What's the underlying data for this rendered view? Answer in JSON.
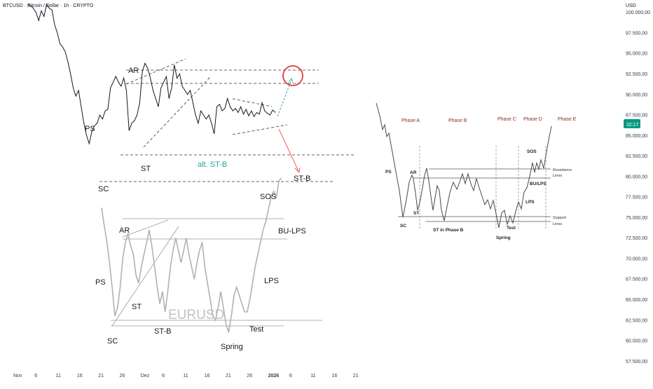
{
  "header": {
    "symbol_title": "BTCUSD · Bitcoin / Dollar · 1h · CRYPTO",
    "currency": "USD",
    "price_badge": "32:17"
  },
  "chart_data": {
    "type": "line",
    "title": "BTCUSD · Bitcoin / Dollar · 1h · CRYPTO",
    "y_axis": {
      "ticks": [
        "100.000,00",
        "97.500,00",
        "95.000,00",
        "92.500,00",
        "90.000,00",
        "87.500,00",
        "85.000,00",
        "82.500,00",
        "80.000,00",
        "77.500,00",
        "75.000,00",
        "72.500,00",
        "70.000,00",
        "67.500,00",
        "65.000,00",
        "62.500,00",
        "60.000,00",
        "57.500,00"
      ],
      "ylim": [
        56500,
        101000
      ]
    },
    "x_axis": {
      "ticks": [
        "Nov",
        "6",
        "11",
        "16",
        "21",
        "26",
        "Dez",
        "6",
        "11",
        "16",
        "21",
        "26",
        "2026",
        "6",
        "11",
        "16",
        "21"
      ],
      "bold": "2026"
    },
    "series": [
      {
        "points": [
          [
            0,
            101000
          ],
          [
            1,
            100800
          ],
          [
            2,
            100500
          ],
          [
            3,
            100000
          ],
          [
            4,
            99000
          ],
          [
            5,
            100200
          ],
          [
            6,
            99500
          ],
          [
            7,
            101000
          ],
          [
            8,
            100500
          ],
          [
            9,
            100300
          ],
          [
            10,
            98500
          ],
          [
            11,
            97500
          ],
          [
            12,
            96200
          ],
          [
            13,
            95800
          ],
          [
            14,
            95200
          ],
          [
            15,
            94000
          ],
          [
            16,
            92500
          ],
          [
            17,
            90800
          ],
          [
            18,
            89800
          ],
          [
            19,
            90500
          ],
          [
            20,
            88500
          ],
          [
            21,
            86500
          ],
          [
            22,
            85000
          ],
          [
            23,
            84000
          ],
          [
            24,
            85500
          ],
          [
            25,
            86200
          ],
          [
            26,
            86500
          ],
          [
            27,
            87500
          ],
          [
            28,
            87000
          ],
          [
            29,
            88000
          ],
          [
            30,
            88200
          ],
          [
            31,
            90800
          ],
          [
            32,
            91500
          ],
          [
            33,
            92200
          ],
          [
            34,
            91500
          ],
          [
            35,
            91000
          ],
          [
            36,
            92000
          ],
          [
            37,
            90500
          ],
          [
            38,
            85600
          ],
          [
            39,
            86500
          ],
          [
            40,
            86800
          ],
          [
            41,
            87500
          ],
          [
            42,
            89000
          ],
          [
            43,
            92800
          ],
          [
            44,
            93800
          ],
          [
            45,
            93200
          ],
          [
            46,
            92000
          ],
          [
            47,
            90500
          ],
          [
            48,
            89500
          ],
          [
            49,
            88500
          ],
          [
            50,
            90800
          ],
          [
            51,
            91500
          ],
          [
            52,
            92200
          ],
          [
            53,
            89500
          ],
          [
            54,
            90800
          ],
          [
            55,
            93600
          ],
          [
            56,
            92000
          ],
          [
            57,
            92500
          ],
          [
            58,
            91000
          ],
          [
            59,
            90500
          ],
          [
            60,
            90000
          ],
          [
            61,
            90500
          ],
          [
            62,
            89000
          ],
          [
            63,
            87500
          ],
          [
            64,
            86500
          ],
          [
            65,
            88000
          ],
          [
            66,
            87500
          ],
          [
            67,
            87000
          ],
          [
            68,
            87500
          ],
          [
            69,
            86500
          ],
          [
            70,
            85200
          ],
          [
            71,
            88500
          ],
          [
            72,
            88800
          ],
          [
            73,
            88000
          ],
          [
            74,
            88300
          ],
          [
            75,
            89500
          ],
          [
            76,
            88500
          ],
          [
            77,
            88000
          ],
          [
            78,
            88300
          ],
          [
            79,
            87800
          ],
          [
            80,
            88500
          ],
          [
            81,
            87600
          ],
          [
            82,
            88200
          ],
          [
            83,
            87400
          ],
          [
            84,
            88000
          ],
          [
            85,
            87300
          ],
          [
            86,
            87800
          ],
          [
            87,
            87600
          ],
          [
            88,
            89000
          ],
          [
            89,
            88000
          ],
          [
            90,
            87700
          ],
          [
            91,
            87500
          ],
          [
            92,
            88100
          ],
          [
            93,
            87800
          ]
        ]
      },
      {
        "name": "EURUSD",
        "points": [
          [
            0,
            76200
          ],
          [
            2,
            74000
          ],
          [
            4,
            72000
          ],
          [
            6,
            69500
          ],
          [
            8,
            66500
          ],
          [
            10,
            63000
          ],
          [
            12,
            64000
          ],
          [
            14,
            66500
          ],
          [
            16,
            70000
          ],
          [
            18,
            72000
          ],
          [
            20,
            73000
          ],
          [
            22,
            71500
          ],
          [
            24,
            70500
          ],
          [
            26,
            68000
          ],
          [
            28,
            67000
          ],
          [
            30,
            69000
          ],
          [
            32,
            70500
          ],
          [
            34,
            72000
          ],
          [
            36,
            73500
          ],
          [
            38,
            71500
          ],
          [
            40,
            69000
          ],
          [
            42,
            66500
          ],
          [
            44,
            64500
          ],
          [
            46,
            66000
          ],
          [
            48,
            63500
          ],
          [
            50,
            66000
          ],
          [
            52,
            69000
          ],
          [
            54,
            71000
          ],
          [
            56,
            72500
          ],
          [
            58,
            71000
          ],
          [
            60,
            69500
          ],
          [
            62,
            71000
          ],
          [
            64,
            72500
          ],
          [
            66,
            70500
          ],
          [
            68,
            69000
          ],
          [
            70,
            67500
          ],
          [
            72,
            69500
          ],
          [
            74,
            71000
          ],
          [
            76,
            72000
          ],
          [
            78,
            69000
          ],
          [
            80,
            67000
          ],
          [
            82,
            65000
          ],
          [
            84,
            63000
          ],
          [
            86,
            62500
          ],
          [
            88,
            64000
          ],
          [
            90,
            66000
          ],
          [
            92,
            64000
          ],
          [
            94,
            62000
          ],
          [
            96,
            61000
          ],
          [
            98,
            63000
          ],
          [
            100,
            65500
          ],
          [
            102,
            66500
          ],
          [
            104,
            65500
          ],
          [
            106,
            64500
          ],
          [
            108,
            63500
          ],
          [
            110,
            63500
          ],
          [
            112,
            65000
          ],
          [
            114,
            67000
          ],
          [
            116,
            69000
          ],
          [
            118,
            70500
          ],
          [
            120,
            72000
          ],
          [
            122,
            73500
          ],
          [
            124,
            74500
          ],
          [
            126,
            76000
          ],
          [
            128,
            77500
          ],
          [
            130,
            78200
          ],
          [
            132,
            77500
          ],
          [
            134,
            79500
          ],
          [
            136,
            79800
          ]
        ]
      }
    ],
    "annotations": [
      "AR",
      "PS",
      "SC",
      "ST",
      "alt. ST-B",
      "ST-B",
      "SOS",
      "BU-LPS",
      "LPS",
      "Spring",
      "Test",
      "SC",
      "ST-B",
      "ST",
      "AR",
      "PS"
    ],
    "watermark": "EURUSD"
  },
  "schematic": {
    "phases": [
      "Phase A",
      "Phase B",
      "Phase C",
      "Phase D",
      "Phase E"
    ],
    "labels": {
      "ps": "PS",
      "ar": "AR",
      "st": "ST",
      "sc": "SC",
      "st_in_phase_b": "ST in Phase B",
      "spring": "Spring",
      "test": "Test",
      "lps": "LPS",
      "bu_lps": "BU/LPS",
      "sos": "SOS",
      "resistance_1": "Resistance",
      "resistance_2": "Lines",
      "support_1": "Support",
      "support_2": "Lines"
    }
  },
  "colors": {
    "btc_line": "#131722",
    "eur_line": "#b2b2b2",
    "watermark": "#c2c2c2",
    "up_arrow": "#26a69a",
    "down_arrow": "#ef5350",
    "circle": "#e53935",
    "dashed": "#333333",
    "phase_label": "#8b2c2c",
    "price_badge_bg": "#089981",
    "axis_text": "#363a45",
    "schematic_line": "#4a4a4a"
  }
}
